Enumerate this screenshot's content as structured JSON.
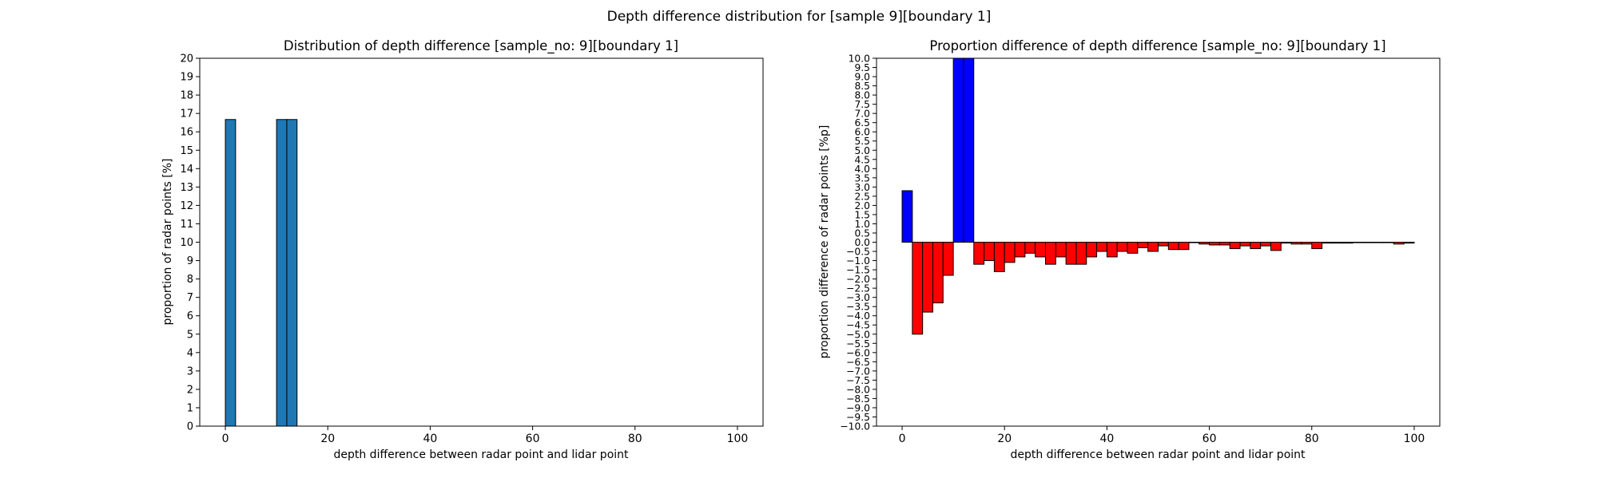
{
  "suptitle": "Depth difference distribution for [sample 9][boundary 1]",
  "chart_data": [
    {
      "type": "bar",
      "title": "Distribution of depth difference [sample_no: 9][boundary 1]",
      "xlabel": "depth difference between radar point and lidar point",
      "ylabel": "proportion of radar points [%]",
      "xlim": [
        -5,
        105
      ],
      "ylim": [
        0,
        20
      ],
      "xticks": [
        0,
        20,
        40,
        60,
        80,
        100
      ],
      "yticks": [
        0,
        1,
        2,
        3,
        4,
        5,
        6,
        7,
        8,
        9,
        10,
        11,
        12,
        13,
        14,
        15,
        16,
        17,
        18,
        19,
        20
      ],
      "bin_width": 2,
      "bar_color": "#1f77b4",
      "bars": [
        {
          "x": 0,
          "value": 16.67
        },
        {
          "x": 10,
          "value": 16.67
        },
        {
          "x": 12,
          "value": 16.67
        }
      ]
    },
    {
      "type": "bar",
      "title": "Proportion difference of depth difference [sample_no: 9][boundary 1]",
      "xlabel": "depth difference between radar point and lidar point",
      "ylabel": "proportion difference of radar points [%p]",
      "xlim": [
        -5,
        105
      ],
      "ylim": [
        -10,
        10
      ],
      "xticks": [
        0,
        20,
        40,
        60,
        80,
        100
      ],
      "ytick_step": 0.5,
      "bin_width": 2,
      "positive_color": "#0000ff",
      "negative_color": "#ff0000",
      "bars": [
        {
          "x": 0,
          "value": 2.8
        },
        {
          "x": 2,
          "value": -5.0
        },
        {
          "x": 4,
          "value": -3.8
        },
        {
          "x": 6,
          "value": -3.3
        },
        {
          "x": 8,
          "value": -1.8
        },
        {
          "x": 10,
          "value": 10.0
        },
        {
          "x": 12,
          "value": 10.0
        },
        {
          "x": 14,
          "value": -1.2
        },
        {
          "x": 16,
          "value": -1.0
        },
        {
          "x": 18,
          "value": -1.6
        },
        {
          "x": 20,
          "value": -1.1
        },
        {
          "x": 22,
          "value": -0.8
        },
        {
          "x": 24,
          "value": -0.6
        },
        {
          "x": 26,
          "value": -0.8
        },
        {
          "x": 28,
          "value": -1.2
        },
        {
          "x": 30,
          "value": -0.8
        },
        {
          "x": 32,
          "value": -1.2
        },
        {
          "x": 34,
          "value": -1.2
        },
        {
          "x": 36,
          "value": -0.8
        },
        {
          "x": 38,
          "value": -0.5
        },
        {
          "x": 40,
          "value": -0.8
        },
        {
          "x": 42,
          "value": -0.5
        },
        {
          "x": 44,
          "value": -0.6
        },
        {
          "x": 46,
          "value": -0.3
        },
        {
          "x": 48,
          "value": -0.5
        },
        {
          "x": 50,
          "value": -0.2
        },
        {
          "x": 52,
          "value": -0.4
        },
        {
          "x": 54,
          "value": -0.4
        },
        {
          "x": 56,
          "value": 0.0
        },
        {
          "x": 58,
          "value": -0.1
        },
        {
          "x": 60,
          "value": -0.15
        },
        {
          "x": 62,
          "value": -0.15
        },
        {
          "x": 64,
          "value": -0.35
        },
        {
          "x": 66,
          "value": -0.2
        },
        {
          "x": 68,
          "value": -0.35
        },
        {
          "x": 70,
          "value": -0.2
        },
        {
          "x": 72,
          "value": -0.45
        },
        {
          "x": 74,
          "value": -0.05
        },
        {
          "x": 76,
          "value": -0.1
        },
        {
          "x": 78,
          "value": -0.1
        },
        {
          "x": 80,
          "value": -0.35
        },
        {
          "x": 82,
          "value": -0.05
        },
        {
          "x": 84,
          "value": -0.05
        },
        {
          "x": 86,
          "value": -0.05
        },
        {
          "x": 88,
          "value": 0.0
        },
        {
          "x": 90,
          "value": 0.0
        },
        {
          "x": 92,
          "value": 0.0
        },
        {
          "x": 94,
          "value": 0.0
        },
        {
          "x": 96,
          "value": -0.1
        },
        {
          "x": 98,
          "value": -0.05
        }
      ]
    }
  ]
}
